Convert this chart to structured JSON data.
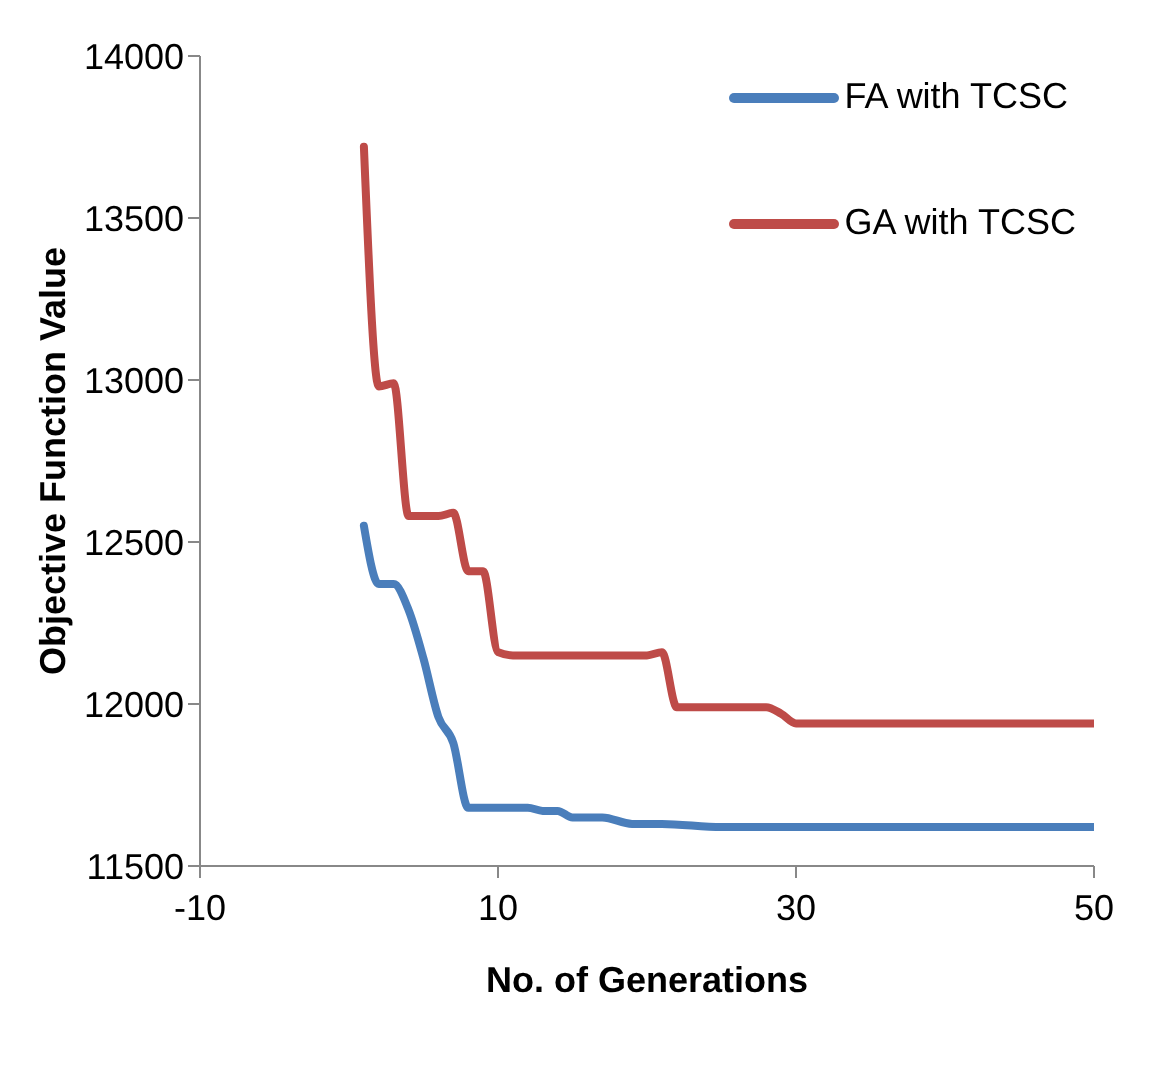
{
  "chart_data": {
    "type": "line",
    "xlabel": "No. of Generations",
    "ylabel": "Objective Function Value",
    "xlim": [
      -10,
      50
    ],
    "xticks": [
      -10,
      10,
      30,
      50
    ],
    "ylim": [
      11500,
      14000
    ],
    "yticks": [
      11500,
      12000,
      12500,
      13000,
      13500,
      14000
    ],
    "grid": false,
    "legend": "top right",
    "marker": "none",
    "line_style": "solid",
    "series": [
      {
        "name": "FA with TCSC",
        "color": "#4a7ebb",
        "x": [
          1,
          2,
          3,
          4,
          5,
          6,
          7,
          8,
          9,
          12,
          13,
          14,
          15,
          17,
          19,
          21,
          25,
          30,
          40,
          50
        ],
        "values": [
          12550,
          12370,
          12370,
          12290,
          12140,
          11960,
          11880,
          11680,
          11680,
          11680,
          11670,
          11670,
          11650,
          11650,
          11630,
          11630,
          11620,
          11620,
          11620,
          11620
        ]
      },
      {
        "name": "GA with TCSC",
        "color": "#be4b48",
        "x": [
          1,
          2,
          3,
          4,
          5,
          6,
          7,
          8,
          9,
          10,
          11,
          15,
          20,
          21,
          22,
          23,
          28,
          29,
          30,
          35,
          40,
          50
        ],
        "values": [
          13720,
          12980,
          12990,
          12580,
          12580,
          12580,
          12590,
          12410,
          12410,
          12160,
          12150,
          12150,
          12150,
          12160,
          11990,
          11990,
          11990,
          11970,
          11940,
          11940,
          11940,
          11940
        ]
      }
    ]
  }
}
